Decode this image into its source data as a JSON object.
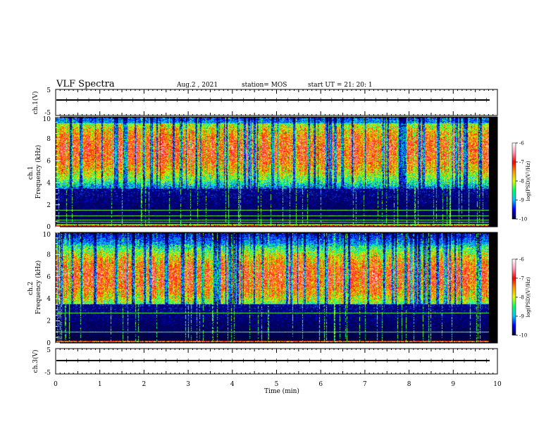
{
  "header": {
    "title": "VLF Spectra",
    "date": "Aug.2 , 2021",
    "station": "station= MOS",
    "start": "start UT = 21: 20: 1"
  },
  "chart_data": [
    {
      "type": "line",
      "name": "ch1-voltage",
      "ylabel": "ch.1(V)",
      "ylim": [
        -5,
        5
      ],
      "yticks": [
        "5",
        "-5"
      ],
      "level": 0
    },
    {
      "type": "heatmap",
      "name": "ch1-spectrogram",
      "ylabel": "ch.1\nFrequency (kHz)",
      "ylim": [
        0,
        10
      ],
      "yticks": [
        "0",
        "2",
        "4",
        "6",
        "8",
        "10"
      ],
      "colorbar": {
        "label": "log(PSD)(V²/Hz)",
        "range": [
          -10,
          -6
        ],
        "ticks": [
          "-6",
          "-7",
          "-8",
          "-9",
          "-10"
        ]
      },
      "band": {
        "center_khz": 7,
        "lower_khz": 3.5,
        "upper_khz": 9.5
      },
      "tone_lines_khz": [
        0.2,
        0.4,
        0.6,
        1.0,
        1.5
      ]
    },
    {
      "type": "heatmap",
      "name": "ch2-spectrogram",
      "ylabel": "ch.2\nFrequency (kHz)",
      "ylim": [
        0,
        10
      ],
      "yticks": [
        "0",
        "2",
        "4",
        "6",
        "8",
        "10"
      ],
      "colorbar": {
        "label": "log(PSD)(V²/Hz)",
        "range": [
          -10,
          -6
        ],
        "ticks": [
          "-6",
          "-7",
          "-8",
          "-9",
          "-10"
        ]
      },
      "band": {
        "center_khz": 6,
        "lower_khz": 3.5,
        "upper_khz": 9
      },
      "tone_lines_khz": [
        1.0,
        2.7
      ]
    },
    {
      "type": "line",
      "name": "ch3-voltage",
      "ylabel": "ch.3(V)",
      "ylim": [
        -5,
        5
      ],
      "yticks": [
        "5",
        "-5"
      ],
      "level": 0
    }
  ],
  "xaxis": {
    "label": "Time (min)",
    "xlim": [
      0,
      10
    ],
    "ticks": [
      "0",
      "1",
      "2",
      "3",
      "4",
      "5",
      "6",
      "7",
      "8",
      "9",
      "10"
    ],
    "data_end_min": 9.83
  },
  "colors": {
    "background": "#000000",
    "trace": "#000000",
    "colormap": [
      "#00003c",
      "#0000ff",
      "#00c8ff",
      "#00ff64",
      "#dcff00",
      "#ff9600",
      "#ff0000",
      "#ff96b4",
      "#ffffff"
    ]
  }
}
